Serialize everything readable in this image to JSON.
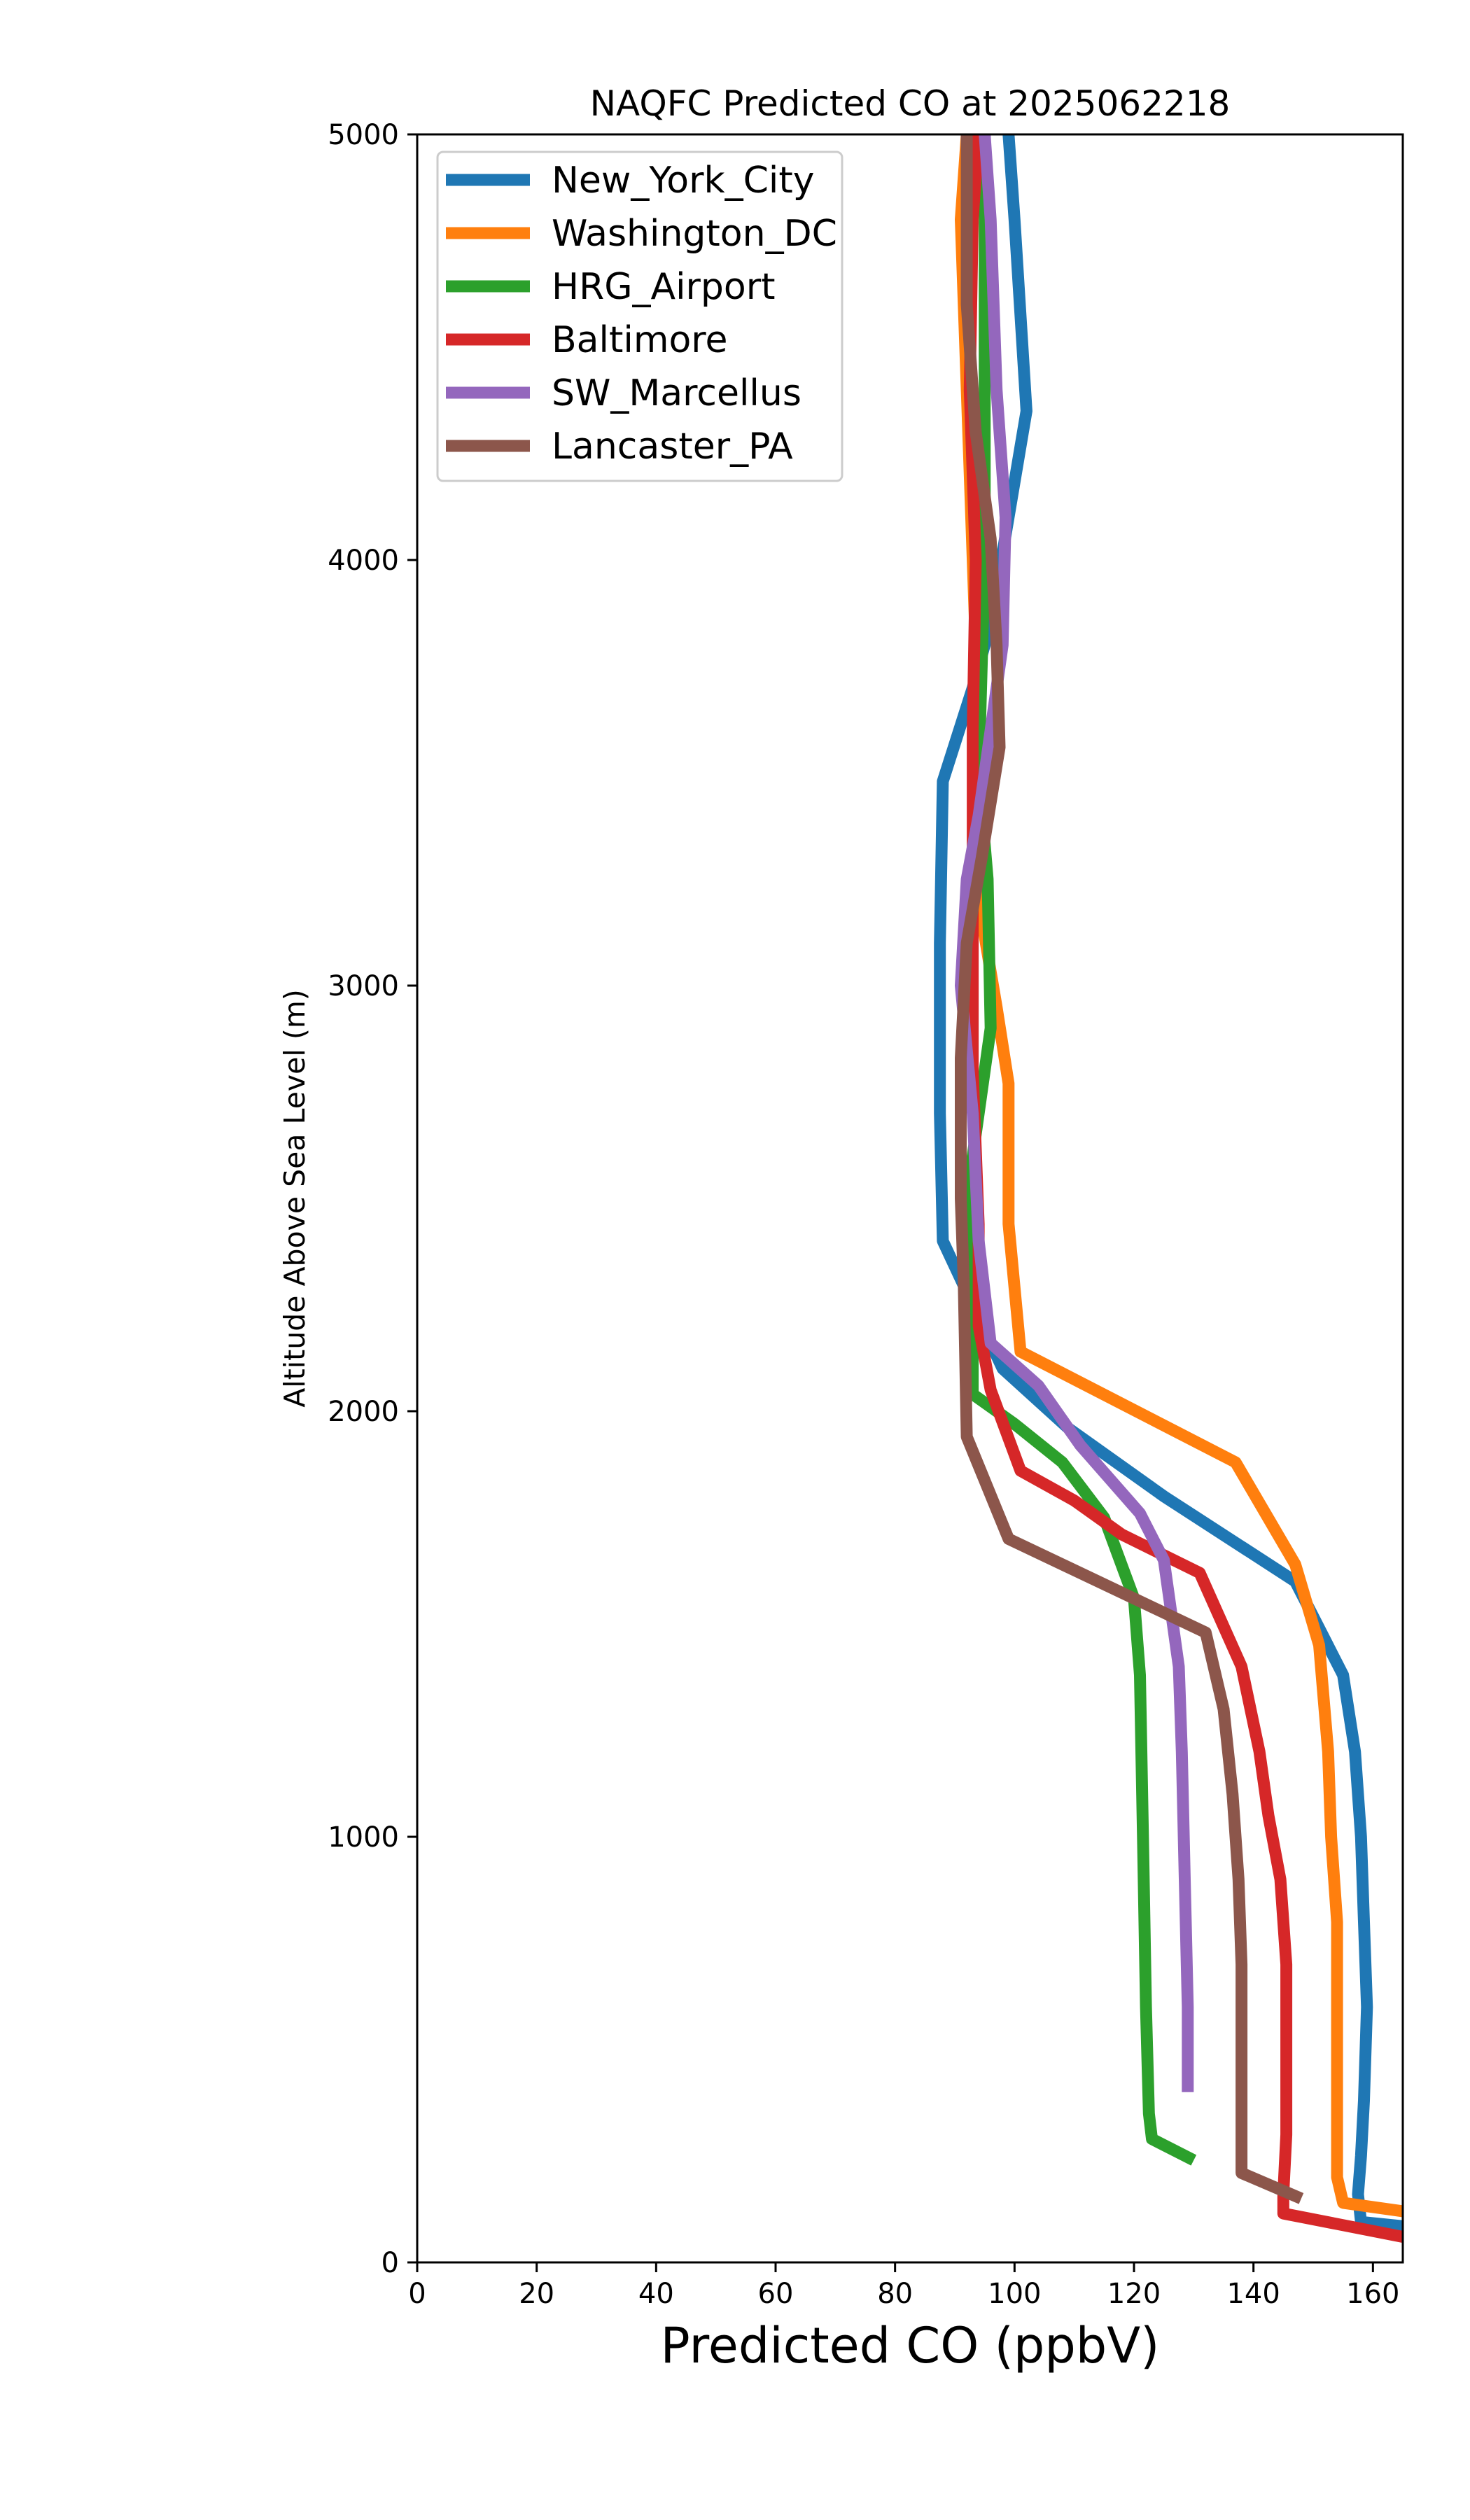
{
  "chart_data": {
    "type": "line",
    "title": "NAQFC Predicted CO at 2025062218",
    "xlabel": "Predicted CO (ppbV)",
    "ylabel": "Altitude Above Sea Level (m)",
    "xlim": [
      0,
      165
    ],
    "ylim": [
      0,
      5000
    ],
    "xticks": [
      0,
      20,
      40,
      60,
      80,
      100,
      120,
      140,
      160
    ],
    "yticks": [
      0,
      1000,
      2000,
      3000,
      4000,
      5000
    ],
    "grid": false,
    "legend_position": "upper-left",
    "series": [
      {
        "name": "New_York_City",
        "color": "#1f77b4",
        "points": [
          [
            165,
            85
          ],
          [
            158,
            95
          ],
          [
            157.5,
            160
          ],
          [
            158,
            250
          ],
          [
            158.5,
            380
          ],
          [
            159,
            600
          ],
          [
            158.5,
            800
          ],
          [
            158,
            1000
          ],
          [
            157,
            1200
          ],
          [
            155,
            1380
          ],
          [
            147,
            1600
          ],
          [
            125,
            1800
          ],
          [
            109,
            1960
          ],
          [
            98,
            2100
          ],
          [
            88,
            2400
          ],
          [
            87.5,
            2700
          ],
          [
            87.5,
            3100
          ],
          [
            88,
            3480
          ],
          [
            93,
            3700
          ],
          [
            96,
            3850
          ],
          [
            99,
            4100
          ],
          [
            102,
            4350
          ],
          [
            100,
            4800
          ],
          [
            99,
            5000
          ]
        ]
      },
      {
        "name": "Washington_DC",
        "color": "#ff7f0e",
        "points": [
          [
            165,
            120
          ],
          [
            155,
            140
          ],
          [
            154,
            200
          ],
          [
            154,
            400
          ],
          [
            154,
            600
          ],
          [
            154,
            800
          ],
          [
            153,
            1000
          ],
          [
            152.5,
            1200
          ],
          [
            151,
            1450
          ],
          [
            147,
            1640
          ],
          [
            137,
            1880
          ],
          [
            101,
            2140
          ],
          [
            99,
            2440
          ],
          [
            99,
            2770
          ],
          [
            97,
            2950
          ],
          [
            94,
            3200
          ],
          [
            94,
            3600
          ],
          [
            93,
            4000
          ],
          [
            92,
            4400
          ],
          [
            91,
            4800
          ],
          [
            92,
            5000
          ]
        ]
      },
      {
        "name": "HRG_Airport",
        "color": "#2ca02c",
        "points": [
          [
            130,
            240
          ],
          [
            123,
            290
          ],
          [
            122.5,
            350
          ],
          [
            122,
            600
          ],
          [
            121.5,
            1000
          ],
          [
            121,
            1380
          ],
          [
            120,
            1560
          ],
          [
            115,
            1750
          ],
          [
            108,
            1880
          ],
          [
            100,
            1970
          ],
          [
            93,
            2040
          ],
          [
            93,
            2300
          ],
          [
            92,
            2500
          ],
          [
            93,
            2600
          ],
          [
            96,
            2900
          ],
          [
            95.5,
            3250
          ],
          [
            94,
            3500
          ],
          [
            95,
            4000
          ],
          [
            95,
            4500
          ],
          [
            95,
            5000
          ]
        ]
      },
      {
        "name": "Baltimore",
        "color": "#d62728",
        "points": [
          [
            165,
            60
          ],
          [
            145,
            115
          ],
          [
            145,
            160
          ],
          [
            145.5,
            300
          ],
          [
            145.5,
            500
          ],
          [
            145.5,
            700
          ],
          [
            144.5,
            900
          ],
          [
            142.5,
            1050
          ],
          [
            141,
            1200
          ],
          [
            138,
            1400
          ],
          [
            131,
            1620
          ],
          [
            118,
            1710
          ],
          [
            110,
            1790
          ],
          [
            101,
            1860
          ],
          [
            96,
            2050
          ],
          [
            94,
            2200
          ],
          [
            94,
            2440
          ],
          [
            93,
            2800
          ],
          [
            93,
            3200
          ],
          [
            93,
            3600
          ],
          [
            93.5,
            4000
          ],
          [
            92.5,
            4400
          ],
          [
            93,
            4800
          ],
          [
            94,
            5000
          ]
        ]
      },
      {
        "name": "SW_Marcellus",
        "color": "#9467bd",
        "points": [
          [
            129,
            400
          ],
          [
            129,
            600
          ],
          [
            128.5,
            900
          ],
          [
            128,
            1200
          ],
          [
            127.5,
            1400
          ],
          [
            125,
            1650
          ],
          [
            121,
            1760
          ],
          [
            111,
            1920
          ],
          [
            104,
            2060
          ],
          [
            96,
            2160
          ],
          [
            94,
            2400
          ],
          [
            93,
            2700
          ],
          [
            91,
            3000
          ],
          [
            92,
            3250
          ],
          [
            94,
            3400
          ],
          [
            96,
            3600
          ],
          [
            98,
            3800
          ],
          [
            98.5,
            4100
          ],
          [
            97,
            4400
          ],
          [
            96,
            4800
          ],
          [
            95,
            5000
          ]
        ]
      },
      {
        "name": "Lancaster_PA",
        "color": "#8c564b",
        "points": [
          [
            148,
            150
          ],
          [
            138,
            210
          ],
          [
            138,
            400
          ],
          [
            138,
            700
          ],
          [
            137.5,
            900
          ],
          [
            136.5,
            1100
          ],
          [
            135,
            1300
          ],
          [
            132,
            1480
          ],
          [
            99,
            1700
          ],
          [
            92,
            1940
          ],
          [
            91.5,
            2300
          ],
          [
            91,
            2500
          ],
          [
            91,
            2830
          ],
          [
            92,
            3100
          ],
          [
            94.5,
            3300
          ],
          [
            97.5,
            3560
          ],
          [
            97,
            3800
          ],
          [
            96,
            4050
          ],
          [
            93.5,
            4300
          ],
          [
            92,
            4600
          ],
          [
            92,
            5000
          ]
        ]
      }
    ]
  }
}
